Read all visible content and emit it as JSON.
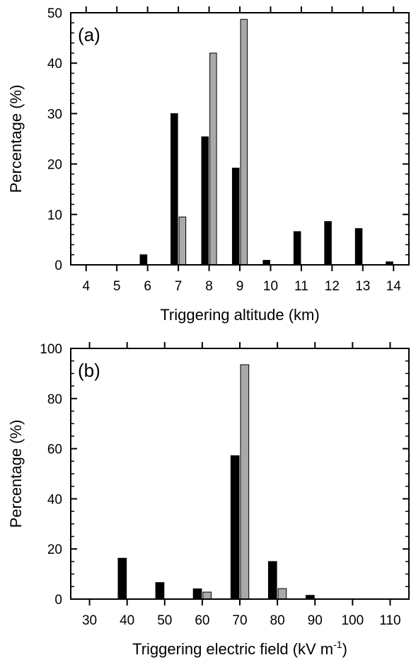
{
  "chart_data": [
    {
      "panel_label": "(a)",
      "type": "bar",
      "xlabel": "Triggering altitude (km)",
      "ylabel": "Percentage (%)",
      "categories": [
        4,
        5,
        6,
        7,
        8,
        9,
        10,
        11,
        12,
        13,
        14
      ],
      "xlim": [
        3.5,
        14.5
      ],
      "ylim": [
        0,
        50
      ],
      "y_ticks": [
        0,
        10,
        20,
        30,
        40,
        50
      ],
      "series": [
        {
          "color": "#000000",
          "values": [
            0,
            0,
            2.0,
            30.0,
            25.4,
            19.2,
            0.9,
            6.6,
            8.6,
            7.2,
            0.6
          ]
        },
        {
          "color": "#a9a9a9",
          "values": [
            0,
            0,
            0,
            9.5,
            42.0,
            48.7,
            0,
            0,
            0,
            0,
            0
          ]
        }
      ]
    },
    {
      "panel_label": "(b)",
      "type": "bar",
      "xlabel": "Triggering electric field (kV m",
      "xlabel_superscript": "-1",
      "xlabel_suffix": ")",
      "ylabel": "Percentage (%)",
      "categories": [
        30,
        40,
        50,
        60,
        70,
        80,
        90,
        100,
        110
      ],
      "xlim": [
        25,
        115
      ],
      "ylim": [
        0,
        100
      ],
      "y_ticks": [
        0,
        20,
        40,
        60,
        80,
        100
      ],
      "series": [
        {
          "color": "#000000",
          "values": [
            0,
            16.3,
            6.6,
            4.1,
            57.2,
            15.0,
            1.5,
            0,
            0
          ]
        },
        {
          "color": "#a9a9a9",
          "values": [
            0,
            0,
            0,
            2.8,
            93.5,
            4.2,
            0,
            0,
            0
          ]
        }
      ]
    }
  ]
}
